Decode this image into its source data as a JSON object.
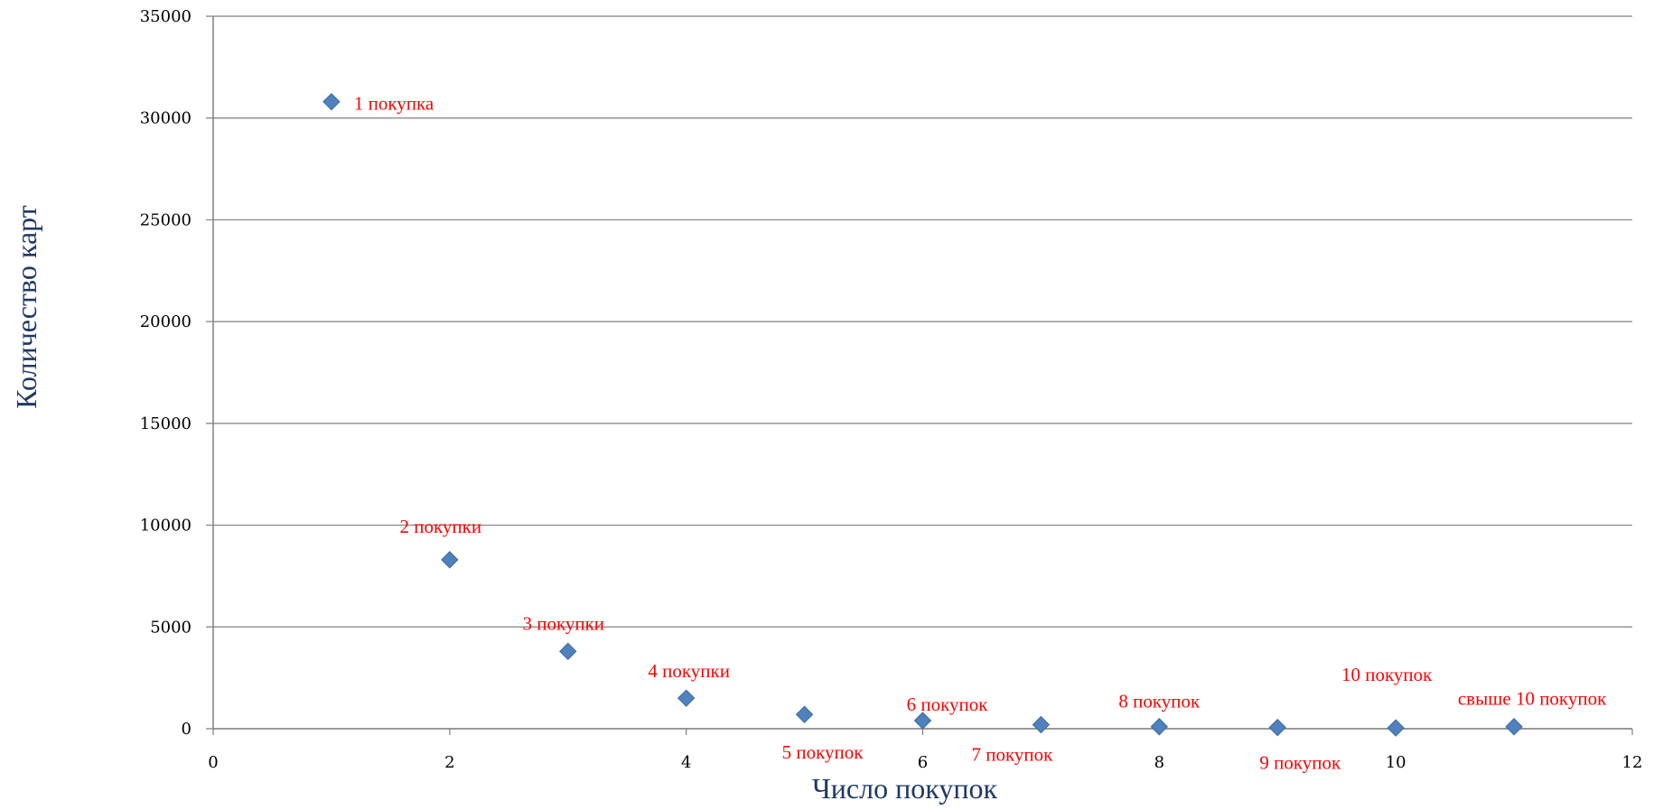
{
  "chart_data": {
    "type": "scatter",
    "title": "",
    "xlabel": "Число покупок",
    "ylabel": "Количество карт",
    "xlim": [
      0,
      12
    ],
    "ylim": [
      0,
      35000
    ],
    "x_ticks": [
      "0",
      "2",
      "4",
      "6",
      "8",
      "10",
      "12"
    ],
    "y_ticks": [
      "0",
      "5000",
      "10000",
      "15000",
      "20000",
      "25000",
      "30000",
      "35000"
    ],
    "grid": "horizontal",
    "legend": "none",
    "marker": "diamond",
    "colors": {
      "marker": "#4F81BD",
      "label": "#FF0000",
      "axis_title": "#1F3864",
      "grid": "#808080"
    },
    "points": [
      {
        "x": 1,
        "y": 30800,
        "label": "1 покупка"
      },
      {
        "x": 2,
        "y": 8300,
        "label": "2 покупки"
      },
      {
        "x": 3,
        "y": 3800,
        "label": "3 покупки"
      },
      {
        "x": 4,
        "y": 1500,
        "label": "4 покупки"
      },
      {
        "x": 5,
        "y": 700,
        "label": "5 покупок"
      },
      {
        "x": 6,
        "y": 400,
        "label": "6 покупок"
      },
      {
        "x": 7,
        "y": 200,
        "label": "7 покупок"
      },
      {
        "x": 8,
        "y": 100,
        "label": "8 покупок"
      },
      {
        "x": 9,
        "y": 60,
        "label": "9 покупок"
      },
      {
        "x": 10,
        "y": 40,
        "label": "10 покупок"
      },
      {
        "x": 11,
        "y": 100,
        "label": "свыше 10 покупок"
      }
    ]
  }
}
